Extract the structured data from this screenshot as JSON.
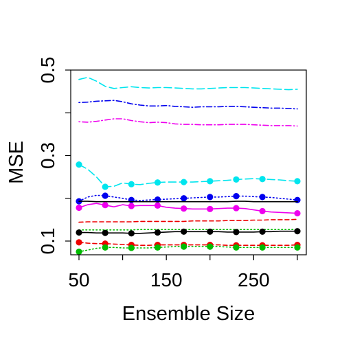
{
  "chart_data": {
    "type": "line",
    "title": "",
    "xlabel": "Ensemble Size",
    "ylabel": "MSE",
    "xlim": [
      50,
      300
    ],
    "ylim": [
      0.07,
      0.5
    ],
    "x_ticks": [
      50,
      100,
      150,
      200,
      250,
      300
    ],
    "x_tick_labels": [
      "50",
      "",
      "150",
      "",
      "250",
      ""
    ],
    "y_ticks": [
      0.1,
      0.2,
      0.3,
      0.4,
      0.5
    ],
    "y_tick_labels": [
      "0.1",
      "",
      "0.3",
      "",
      "0.5"
    ],
    "grid": false,
    "legend": "none",
    "x": [
      50,
      60,
      70,
      80,
      90,
      100,
      110,
      120,
      130,
      140,
      150,
      160,
      170,
      180,
      190,
      200,
      210,
      220,
      230,
      240,
      250,
      260,
      270,
      280,
      290,
      300
    ],
    "series": [
      {
        "color": "#00E5EE",
        "dash": "long-dash",
        "markers": false,
        "values": [
          0.478,
          0.483,
          0.474,
          0.462,
          0.457,
          0.459,
          0.461,
          0.459,
          0.458,
          0.459,
          0.459,
          0.458,
          0.457,
          0.456,
          0.456,
          0.457,
          0.458,
          0.459,
          0.459,
          0.459,
          0.458,
          0.457,
          0.456,
          0.455,
          0.454,
          0.455
        ]
      },
      {
        "color": "#0000EE",
        "dash": "dot-dash",
        "markers": false,
        "values": [
          0.424,
          0.425,
          0.427,
          0.428,
          0.429,
          0.426,
          0.421,
          0.418,
          0.416,
          0.416,
          0.417,
          0.415,
          0.414,
          0.413,
          0.414,
          0.414,
          0.414,
          0.415,
          0.415,
          0.414,
          0.413,
          0.412,
          0.411,
          0.411,
          0.41,
          0.409
        ]
      },
      {
        "color": "#EE00EE",
        "dash": "dot-dash",
        "markers": false,
        "values": [
          0.379,
          0.378,
          0.38,
          0.383,
          0.386,
          0.386,
          0.382,
          0.379,
          0.377,
          0.378,
          0.377,
          0.374,
          0.373,
          0.373,
          0.372,
          0.372,
          0.372,
          0.373,
          0.373,
          0.373,
          0.372,
          0.371,
          0.37,
          0.37,
          0.37,
          0.369
        ]
      },
      {
        "color": "#00E5EE",
        "dash": "long-dash",
        "markers": true,
        "values": [
          0.279,
          0.268,
          0.25,
          0.227,
          0.228,
          0.236,
          0.233,
          0.232,
          0.235,
          0.237,
          0.238,
          0.238,
          0.238,
          0.238,
          0.239,
          0.24,
          0.241,
          0.242,
          0.244,
          0.245,
          0.246,
          0.245,
          0.244,
          0.243,
          0.241,
          0.24
        ]
      },
      {
        "color": "#0000EE",
        "dash": "dotted",
        "markers": true,
        "values": [
          0.193,
          0.203,
          0.207,
          0.206,
          0.203,
          0.2,
          0.196,
          0.195,
          0.196,
          0.197,
          0.198,
          0.199,
          0.2,
          0.201,
          0.202,
          0.203,
          0.203,
          0.204,
          0.205,
          0.205,
          0.204,
          0.203,
          0.202,
          0.2,
          0.198,
          0.196
        ]
      },
      {
        "color": "#000000",
        "dash": "solid",
        "markers": false,
        "values": [
          0.193,
          0.193,
          0.192,
          0.192,
          0.192,
          0.192,
          0.192,
          0.192,
          0.192,
          0.192,
          0.192,
          0.192,
          0.192,
          0.192,
          0.192,
          0.192,
          0.192,
          0.192,
          0.193,
          0.193,
          0.192,
          0.192,
          0.192,
          0.192,
          0.192,
          0.192
        ]
      },
      {
        "color": "#EE00EE",
        "dash": "solid",
        "markers": true,
        "values": [
          0.178,
          0.185,
          0.188,
          0.184,
          0.18,
          0.185,
          0.182,
          0.183,
          0.183,
          0.183,
          0.179,
          0.177,
          0.176,
          0.175,
          0.175,
          0.175,
          0.176,
          0.177,
          0.177,
          0.176,
          0.173,
          0.17,
          0.168,
          0.167,
          0.166,
          0.165
        ]
      },
      {
        "color": "#EE0000",
        "dash": "dashed",
        "markers": false,
        "values": [
          0.144,
          0.145,
          0.145,
          0.145,
          0.145,
          0.145,
          0.145,
          0.146,
          0.146,
          0.146,
          0.146,
          0.146,
          0.146,
          0.147,
          0.147,
          0.147,
          0.147,
          0.148,
          0.148,
          0.148,
          0.149,
          0.149,
          0.15,
          0.15,
          0.15,
          0.151
        ]
      },
      {
        "color": "#00BB00",
        "dash": "dotted",
        "markers": false,
        "values": [
          0.126,
          0.126,
          0.126,
          0.126,
          0.126,
          0.126,
          0.126,
          0.127,
          0.127,
          0.127,
          0.127,
          0.127,
          0.127,
          0.127,
          0.127,
          0.127,
          0.127,
          0.127,
          0.127,
          0.127,
          0.127,
          0.127,
          0.127,
          0.127,
          0.127,
          0.127
        ]
      },
      {
        "color": "#000000",
        "dash": "solid",
        "markers": true,
        "values": [
          0.12,
          0.12,
          0.119,
          0.119,
          0.119,
          0.119,
          0.118,
          0.118,
          0.119,
          0.12,
          0.121,
          0.122,
          0.122,
          0.122,
          0.122,
          0.122,
          0.122,
          0.121,
          0.121,
          0.121,
          0.121,
          0.122,
          0.122,
          0.123,
          0.123,
          0.123
        ]
      },
      {
        "color": "#EE0000",
        "dash": "dashed",
        "markers": true,
        "values": [
          0.097,
          0.095,
          0.094,
          0.094,
          0.093,
          0.092,
          0.091,
          0.09,
          0.09,
          0.091,
          0.091,
          0.091,
          0.091,
          0.091,
          0.091,
          0.091,
          0.091,
          0.09,
          0.09,
          0.09,
          0.09,
          0.09,
          0.09,
          0.09,
          0.09,
          0.091
        ]
      },
      {
        "color": "#00BB00",
        "dash": "dotted",
        "markers": true,
        "values": [
          0.075,
          0.079,
          0.083,
          0.085,
          0.085,
          0.084,
          0.084,
          0.084,
          0.084,
          0.085,
          0.086,
          0.087,
          0.087,
          0.087,
          0.087,
          0.087,
          0.087,
          0.086,
          0.085,
          0.085,
          0.085,
          0.085,
          0.085,
          0.085,
          0.085,
          0.085
        ]
      }
    ]
  }
}
